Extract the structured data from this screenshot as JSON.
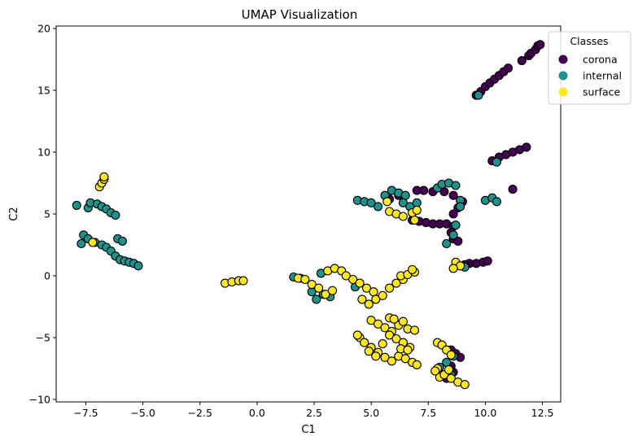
{
  "chart_data": {
    "type": "scatter",
    "title": "UMAP Visualization",
    "xlabel": "C1",
    "ylabel": "C2",
    "xlim": [
      -8.8,
      13.3
    ],
    "ylim": [
      -10.2,
      20.2
    ],
    "xticks": [
      -7.5,
      -5.0,
      -2.5,
      0.0,
      2.5,
      5.0,
      7.5,
      10.0,
      12.5
    ],
    "xtick_labels": [
      "−7.5",
      "−5.0",
      "−2.5",
      "0.0",
      "2.5",
      "5.0",
      "7.5",
      "10.0",
      "12.5"
    ],
    "yticks": [
      -10,
      -5,
      0,
      5,
      10,
      15,
      20
    ],
    "ytick_labels": [
      "−10",
      "−5",
      "0",
      "5",
      "10",
      "15",
      "20"
    ],
    "grid": false,
    "legend": {
      "title": "Classes",
      "placement": "upper-right-outside"
    },
    "series": [
      {
        "name": "corona",
        "color": "#440154",
        "points": [
          [
            9.6,
            14.6
          ],
          [
            9.8,
            14.9
          ],
          [
            10.0,
            15.3
          ],
          [
            10.2,
            15.6
          ],
          [
            10.4,
            15.9
          ],
          [
            10.6,
            16.2
          ],
          [
            10.8,
            16.5
          ],
          [
            11.0,
            16.8
          ],
          [
            11.6,
            17.4
          ],
          [
            11.9,
            17.8
          ],
          [
            12.0,
            18.0
          ],
          [
            12.2,
            18.3
          ],
          [
            12.3,
            18.6
          ],
          [
            12.4,
            18.7
          ],
          [
            10.3,
            9.3
          ],
          [
            10.6,
            9.6
          ],
          [
            10.9,
            9.8
          ],
          [
            11.2,
            10.0
          ],
          [
            11.5,
            10.2
          ],
          [
            11.8,
            10.4
          ],
          [
            11.2,
            7.0
          ],
          [
            5.8,
            6.2
          ],
          [
            6.2,
            6.5
          ],
          [
            7.0,
            6.9
          ],
          [
            7.3,
            6.9
          ],
          [
            7.7,
            6.8
          ],
          [
            8.2,
            6.8
          ],
          [
            8.6,
            6.5
          ],
          [
            9.0,
            6.0
          ],
          [
            6.8,
            4.5
          ],
          [
            7.1,
            4.4
          ],
          [
            7.4,
            4.3
          ],
          [
            7.7,
            4.2
          ],
          [
            8.0,
            4.2
          ],
          [
            8.3,
            4.2
          ],
          [
            8.6,
            4.0
          ],
          [
            8.5,
            3.5
          ],
          [
            8.6,
            3.0
          ],
          [
            8.8,
            2.8
          ],
          [
            8.6,
            5.0
          ],
          [
            8.8,
            5.5
          ],
          [
            9.3,
            1.0
          ],
          [
            9.6,
            1.0
          ],
          [
            9.9,
            1.1
          ],
          [
            10.1,
            1.2
          ],
          [
            9.1,
            0.9
          ],
          [
            8.5,
            -6.0
          ],
          [
            8.7,
            -6.3
          ],
          [
            8.9,
            -6.6
          ],
          [
            8.3,
            -8.3
          ],
          [
            8.6,
            -7.8
          ],
          [
            8.5,
            -7.3
          ]
        ]
      },
      {
        "name": "internal",
        "color": "#21918c",
        "points": [
          [
            -7.9,
            5.7
          ],
          [
            -7.4,
            5.5
          ],
          [
            -7.3,
            5.9
          ],
          [
            -7.0,
            5.8
          ],
          [
            -6.8,
            5.6
          ],
          [
            -6.6,
            5.4
          ],
          [
            -6.4,
            5.1
          ],
          [
            -6.2,
            4.9
          ],
          [
            -7.6,
            3.3
          ],
          [
            -7.4,
            3.0
          ],
          [
            -7.1,
            2.7
          ],
          [
            -6.8,
            2.5
          ],
          [
            -6.6,
            2.3
          ],
          [
            -6.4,
            2.0
          ],
          [
            -6.2,
            1.6
          ],
          [
            -6.0,
            1.3
          ],
          [
            -5.8,
            1.2
          ],
          [
            -5.6,
            1.1
          ],
          [
            -5.4,
            1.0
          ],
          [
            -5.2,
            0.8
          ],
          [
            -7.7,
            2.6
          ],
          [
            -6.1,
            3.0
          ],
          [
            -5.9,
            2.8
          ],
          [
            4.4,
            6.1
          ],
          [
            4.7,
            6.0
          ],
          [
            5.0,
            5.9
          ],
          [
            5.3,
            5.6
          ],
          [
            5.6,
            6.5
          ],
          [
            5.9,
            6.9
          ],
          [
            6.2,
            6.7
          ],
          [
            6.5,
            6.5
          ],
          [
            6.4,
            5.9
          ],
          [
            6.7,
            5.6
          ],
          [
            7.0,
            5.9
          ],
          [
            7.9,
            7.1
          ],
          [
            8.1,
            7.4
          ],
          [
            8.4,
            7.5
          ],
          [
            8.7,
            7.3
          ],
          [
            8.9,
            6.1
          ],
          [
            8.9,
            5.6
          ],
          [
            8.7,
            4.1
          ],
          [
            8.3,
            2.6
          ],
          [
            8.6,
            3.3
          ],
          [
            9.1,
            0.7
          ],
          [
            10.0,
            6.1
          ],
          [
            10.3,
            6.3
          ],
          [
            10.5,
            6.0
          ],
          [
            10.5,
            9.2
          ],
          [
            9.7,
            14.6
          ],
          [
            1.6,
            -0.1
          ],
          [
            1.9,
            -0.2
          ],
          [
            2.4,
            -1.3
          ],
          [
            2.6,
            -1.9
          ],
          [
            2.9,
            -1.5
          ],
          [
            3.2,
            -1.7
          ],
          [
            2.8,
            0.2
          ],
          [
            4.3,
            -0.9
          ],
          [
            8.0,
            -7.4
          ],
          [
            8.3,
            -7.0
          ],
          [
            8.5,
            -8.0
          ],
          [
            8.6,
            -6.5
          ]
        ]
      },
      {
        "name": "surface",
        "color": "#fde725",
        "points": [
          [
            -6.9,
            7.2
          ],
          [
            -6.8,
            7.5
          ],
          [
            -6.7,
            7.8
          ],
          [
            -6.7,
            8.0
          ],
          [
            -7.2,
            2.7
          ],
          [
            -1.4,
            -0.6
          ],
          [
            -1.1,
            -0.5
          ],
          [
            -0.8,
            -0.4
          ],
          [
            -0.6,
            -0.4
          ],
          [
            1.8,
            -0.2
          ],
          [
            2.1,
            -0.3
          ],
          [
            2.4,
            -0.7
          ],
          [
            2.7,
            -1.0
          ],
          [
            3.0,
            -1.5
          ],
          [
            3.3,
            -1.2
          ],
          [
            3.1,
            0.4
          ],
          [
            3.4,
            0.6
          ],
          [
            3.7,
            0.4
          ],
          [
            3.9,
            0.0
          ],
          [
            4.2,
            -0.3
          ],
          [
            4.5,
            -0.6
          ],
          [
            4.8,
            -1.0
          ],
          [
            5.1,
            -1.3
          ],
          [
            4.6,
            -1.9
          ],
          [
            4.9,
            -2.3
          ],
          [
            5.2,
            -1.9
          ],
          [
            5.5,
            -1.6
          ],
          [
            5.8,
            -1.0
          ],
          [
            6.1,
            -0.6
          ],
          [
            6.4,
            -0.3
          ],
          [
            6.3,
            0.0
          ],
          [
            6.6,
            0.1
          ],
          [
            6.9,
            0.3
          ],
          [
            6.8,
            0.5
          ],
          [
            5.8,
            5.2
          ],
          [
            6.1,
            5.0
          ],
          [
            6.4,
            4.8
          ],
          [
            6.8,
            5.1
          ],
          [
            7.0,
            5.3
          ],
          [
            6.9,
            4.5
          ],
          [
            5.7,
            6.0
          ],
          [
            8.7,
            1.1
          ],
          [
            8.9,
            0.8
          ],
          [
            8.6,
            0.6
          ],
          [
            5.0,
            -3.6
          ],
          [
            5.3,
            -3.9
          ],
          [
            5.6,
            -4.2
          ],
          [
            5.9,
            -4.5
          ],
          [
            6.2,
            -4.0
          ],
          [
            6.4,
            -3.7
          ],
          [
            5.8,
            -3.4
          ],
          [
            6.0,
            -3.5
          ],
          [
            4.5,
            -5.0
          ],
          [
            4.7,
            -5.4
          ],
          [
            5.0,
            -5.8
          ],
          [
            5.3,
            -6.2
          ],
          [
            5.6,
            -6.6
          ],
          [
            5.9,
            -6.9
          ],
          [
            6.2,
            -6.5
          ],
          [
            6.5,
            -6.7
          ],
          [
            6.8,
            -7.0
          ],
          [
            7.0,
            -7.2
          ],
          [
            5.5,
            -5.5
          ],
          [
            5.8,
            -4.8
          ],
          [
            6.1,
            -5.1
          ],
          [
            6.4,
            -5.4
          ],
          [
            6.7,
            -5.8
          ],
          [
            6.6,
            -4.3
          ],
          [
            6.9,
            -4.4
          ],
          [
            4.4,
            -4.8
          ],
          [
            4.9,
            -6.1
          ],
          [
            5.2,
            -6.5
          ],
          [
            6.3,
            -5.9
          ],
          [
            6.6,
            -6.0
          ],
          [
            7.9,
            -5.4
          ],
          [
            8.1,
            -5.6
          ],
          [
            8.3,
            -6.0
          ],
          [
            8.5,
            -6.4
          ],
          [
            7.9,
            -7.5
          ],
          [
            8.0,
            -8.2
          ],
          [
            8.2,
            -8.0
          ],
          [
            8.5,
            -8.3
          ],
          [
            8.8,
            -8.6
          ],
          [
            9.1,
            -8.8
          ],
          [
            7.8,
            -7.7
          ],
          [
            8.4,
            -7.6
          ]
        ]
      }
    ]
  }
}
